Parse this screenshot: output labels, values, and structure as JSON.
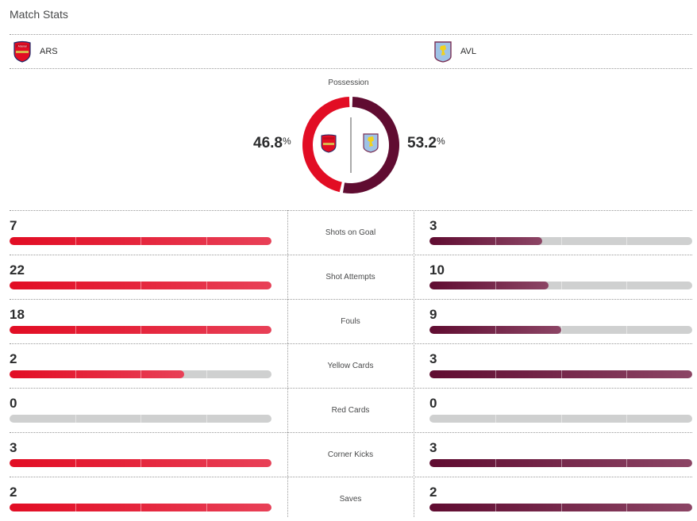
{
  "header": {
    "title": "Match Stats"
  },
  "teams": {
    "home": {
      "abbr": "ARS",
      "crest_icon": "arsenal-crest-icon",
      "color": "#e20d24"
    },
    "away": {
      "abbr": "AVL",
      "crest_icon": "aston-villa-crest-icon",
      "color": "#600c31"
    }
  },
  "possession": {
    "label": "Possession",
    "home_pct": 46.8,
    "away_pct": 53.2,
    "home_text": "46.8",
    "away_text": "53.2",
    "unit": "%"
  },
  "stats": [
    {
      "label": "Shots on Goal",
      "home": 7,
      "away": 3
    },
    {
      "label": "Shot Attempts",
      "home": 22,
      "away": 10
    },
    {
      "label": "Fouls",
      "home": 18,
      "away": 9
    },
    {
      "label": "Yellow Cards",
      "home": 2,
      "away": 3
    },
    {
      "label": "Red Cards",
      "home": 0,
      "away": 0
    },
    {
      "label": "Corner Kicks",
      "home": 3,
      "away": 3
    },
    {
      "label": "Saves",
      "home": 2,
      "away": 2
    }
  ]
}
